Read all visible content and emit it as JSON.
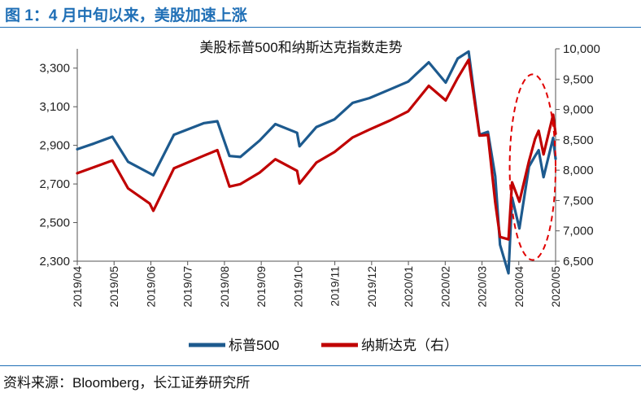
{
  "figure_title": "图 1：4 月中旬以来，美股加速上涨",
  "source": "资料来源：Bloomberg，长江证券研究所",
  "colors": {
    "title": "#1f6fb6",
    "sp500": "#1d5a8e",
    "nasdaq": "#c00000",
    "highlight": "#e00000"
  },
  "chart_data": {
    "type": "line",
    "title": "美股标普500和纳斯达克指数走势",
    "x_tick_labels": [
      "2019/04",
      "2019/05",
      "2019/06",
      "2019/07",
      "2019/08",
      "2019/09",
      "2019/10",
      "2019/11",
      "2019/12",
      "2020/01",
      "2020/02",
      "2020/03",
      "2020/04",
      "2020/05"
    ],
    "y_left": {
      "ticks": [
        "2,300",
        "2,500",
        "2,700",
        "2,900",
        "3,100",
        "3,300"
      ],
      "range": [
        2300,
        3400
      ]
    },
    "y_right": {
      "ticks": [
        "6,500",
        "7,000",
        "7,500",
        "8,000",
        "8,500",
        "9,000",
        "9,500",
        "10,000"
      ],
      "range": [
        6500,
        10000
      ]
    },
    "grid": false,
    "legend_position": "bottom",
    "series": [
      {
        "name": "标普500",
        "axis": "left",
        "x": [
          "2019-04-01",
          "2019-04-15",
          "2019-04-30",
          "2019-05-13",
          "2019-05-31",
          "2019-06-03",
          "2019-06-20",
          "2019-07-15",
          "2019-07-26",
          "2019-08-05",
          "2019-08-14",
          "2019-08-30",
          "2019-09-12",
          "2019-09-30",
          "2019-10-02",
          "2019-10-16",
          "2019-10-31",
          "2019-11-15",
          "2019-11-29",
          "2019-12-16",
          "2019-12-31",
          "2020-01-17",
          "2020-01-31",
          "2020-02-10",
          "2020-02-19",
          "2020-02-28",
          "2020-03-06",
          "2020-03-12",
          "2020-03-16",
          "2020-03-23",
          "2020-03-26",
          "2020-04-01",
          "2020-04-09",
          "2020-04-14",
          "2020-04-17",
          "2020-04-21",
          "2020-04-29",
          "2020-05-01"
        ],
        "values": [
          2880,
          2910,
          2945,
          2815,
          2755,
          2745,
          2955,
          3015,
          3025,
          2845,
          2840,
          2925,
          3010,
          2965,
          2895,
          2995,
          3035,
          3120,
          3145,
          3190,
          3230,
          3330,
          3225,
          3350,
          3386,
          2955,
          2970,
          2740,
          2385,
          2237,
          2630,
          2470,
          2790,
          2845,
          2875,
          2735,
          2939,
          2830
        ]
      },
      {
        "name": "纳斯达克（右）",
        "axis": "right",
        "x": [
          "2019-04-01",
          "2019-04-15",
          "2019-04-30",
          "2019-05-13",
          "2019-05-31",
          "2019-06-03",
          "2019-06-20",
          "2019-07-15",
          "2019-07-26",
          "2019-08-05",
          "2019-08-14",
          "2019-08-30",
          "2019-09-12",
          "2019-09-30",
          "2019-10-02",
          "2019-10-16",
          "2019-10-31",
          "2019-11-15",
          "2019-11-29",
          "2019-12-16",
          "2019-12-31",
          "2020-01-17",
          "2020-01-31",
          "2020-02-10",
          "2020-02-19",
          "2020-02-28",
          "2020-03-06",
          "2020-03-12",
          "2020-03-16",
          "2020-03-23",
          "2020-03-26",
          "2020-04-01",
          "2020-04-09",
          "2020-04-14",
          "2020-04-17",
          "2020-04-21",
          "2020-04-29",
          "2020-05-01"
        ],
        "values": [
          7950,
          8050,
          8160,
          7700,
          7450,
          7330,
          8030,
          8240,
          8330,
          7730,
          7770,
          7960,
          8180,
          7990,
          7780,
          8125,
          8300,
          8540,
          8670,
          8820,
          8970,
          9390,
          9150,
          9520,
          9820,
          8570,
          8580,
          7470,
          6900,
          6860,
          7800,
          7480,
          8150,
          8515,
          8650,
          8260,
          8915,
          8600
        ]
      }
    ],
    "annotations": [
      {
        "type": "dashed-ellipse",
        "x_range": [
          "2020-03-24",
          "2020-05-01"
        ],
        "y_range_right": [
          6520,
          9580
        ]
      }
    ]
  }
}
